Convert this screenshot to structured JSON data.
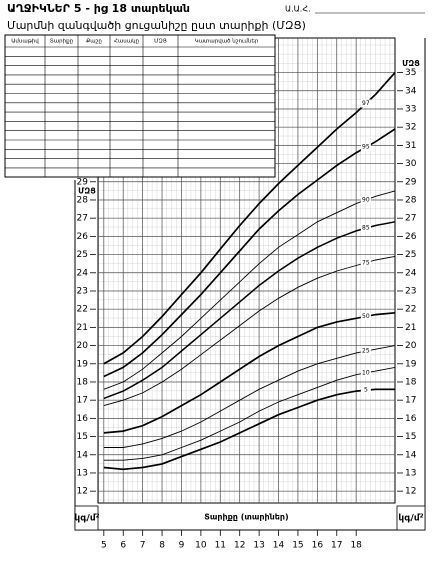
{
  "chart_data": {
    "type": "line",
    "title": "ԱՂՋԻԿՆԵՐ  5 - ից 18 տարեկան",
    "subtitle": "Մարմնի զանգվածի ցուցանիշը ըստ տարիքի (ՄԶՑ)",
    "name_label": "Ա.Ա.Հ.",
    "y_label": "ՄԶՑ",
    "unit_label": "կգ/մ²",
    "x_label": "Տարիքը (տարիներ)",
    "x": [
      5,
      6,
      7,
      8,
      9,
      10,
      11,
      12,
      13,
      14,
      15,
      16,
      17,
      18,
      19,
      20
    ],
    "xlim": [
      4.7,
      20
    ],
    "xticks": [
      5,
      6,
      7,
      8,
      9,
      10,
      11,
      12,
      13,
      14,
      15,
      16,
      17,
      18
    ],
    "ylim": [
      11.35,
      36.9
    ],
    "yticks": [
      12,
      13,
      14,
      15,
      16,
      17,
      18,
      19,
      20,
      21,
      22,
      23,
      24,
      25,
      26,
      27,
      28,
      29,
      30,
      31,
      32,
      33,
      34,
      35
    ],
    "grid": true,
    "series": [
      {
        "name": "97",
        "color": "#000000",
        "width": 1.7,
        "values": [
          19.0,
          19.6,
          20.5,
          21.6,
          22.8,
          24.0,
          25.3,
          26.6,
          27.8,
          28.9,
          29.9,
          30.9,
          31.9,
          32.8,
          33.8,
          35.0
        ]
      },
      {
        "name": "95",
        "color": "#000000",
        "width": 1.7,
        "values": [
          18.3,
          18.8,
          19.6,
          20.6,
          21.7,
          22.8,
          24.0,
          25.2,
          26.4,
          27.4,
          28.3,
          29.1,
          29.9,
          30.6,
          31.2,
          31.9
        ]
      },
      {
        "name": "90",
        "color": "#000000",
        "width": 0.9,
        "values": [
          17.6,
          18.0,
          18.7,
          19.6,
          20.5,
          21.5,
          22.5,
          23.5,
          24.5,
          25.4,
          26.1,
          26.8,
          27.3,
          27.8,
          28.2,
          28.5
        ]
      },
      {
        "name": "85",
        "color": "#000000",
        "width": 1.5,
        "values": [
          17.1,
          17.5,
          18.1,
          18.8,
          19.7,
          20.6,
          21.5,
          22.4,
          23.3,
          24.1,
          24.8,
          25.4,
          25.9,
          26.3,
          26.6,
          26.8
        ]
      },
      {
        "name": "75",
        "color": "#000000",
        "width": 0.9,
        "values": [
          16.7,
          17.0,
          17.4,
          18.0,
          18.7,
          19.5,
          20.3,
          21.1,
          21.9,
          22.6,
          23.2,
          23.7,
          24.1,
          24.4,
          24.7,
          24.9
        ]
      },
      {
        "name": "50",
        "color": "#000000",
        "width": 1.7,
        "values": [
          15.2,
          15.3,
          15.6,
          16.1,
          16.7,
          17.3,
          18.0,
          18.7,
          19.4,
          20.0,
          20.5,
          21.0,
          21.3,
          21.5,
          21.7,
          21.8
        ]
      },
      {
        "name": "25",
        "color": "#000000",
        "width": 0.9,
        "values": [
          14.4,
          14.4,
          14.6,
          14.9,
          15.3,
          15.8,
          16.4,
          17.0,
          17.6,
          18.1,
          18.6,
          19.0,
          19.3,
          19.6,
          19.8,
          20.0
        ]
      },
      {
        "name": "10",
        "color": "#000000",
        "width": 0.9,
        "values": [
          13.7,
          13.7,
          13.8,
          14.0,
          14.4,
          14.8,
          15.3,
          15.8,
          16.4,
          16.9,
          17.3,
          17.7,
          18.1,
          18.4,
          18.6,
          18.8
        ]
      },
      {
        "name": "5",
        "color": "#000000",
        "width": 1.7,
        "values": [
          13.3,
          13.2,
          13.3,
          13.5,
          13.9,
          14.3,
          14.7,
          15.2,
          15.7,
          16.2,
          16.6,
          17.0,
          17.3,
          17.5,
          17.6,
          17.6
        ]
      }
    ]
  },
  "table": {
    "headers": [
      "Ամսաթիվ",
      "Տարիքը",
      "Քաշը",
      "Հասակը",
      "ՄԶՑ",
      "Կատարված նշումներ"
    ]
  }
}
